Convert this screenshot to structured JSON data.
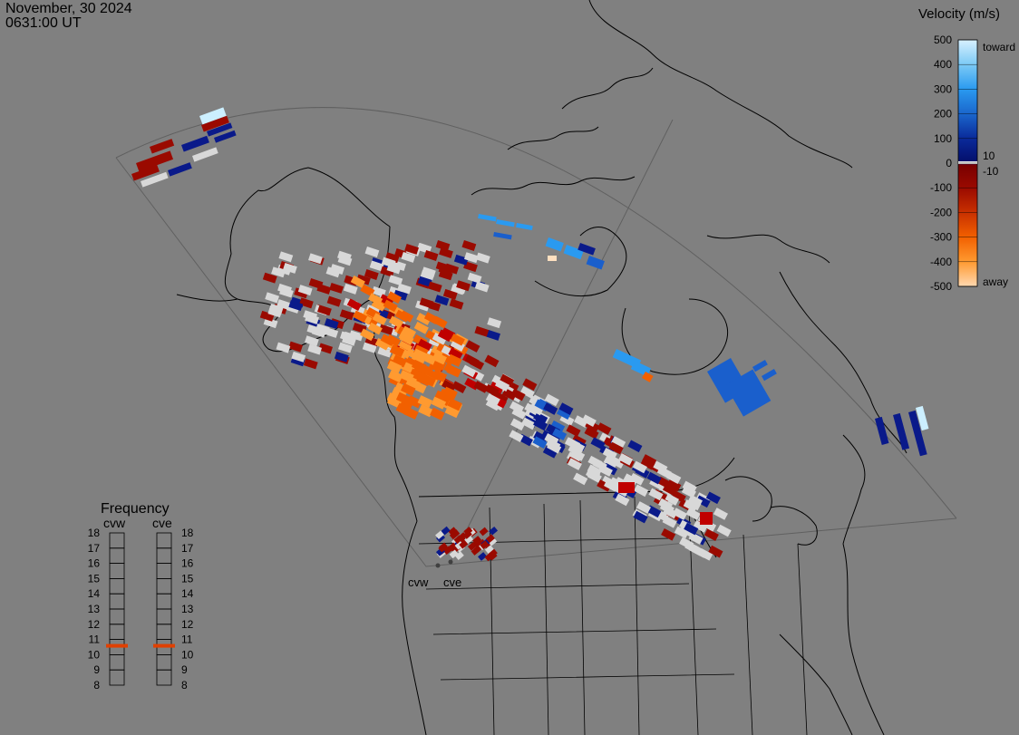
{
  "header": {
    "date": "November, 30 2024",
    "time": "0631:00 UT"
  },
  "colorbar": {
    "title": "Velocity (m/s)",
    "toward_label": "toward",
    "away_label": "away",
    "ticks": [
      "500",
      "400",
      "300",
      "200",
      "100",
      "0",
      "-100",
      "-200",
      "-300",
      "-400",
      "-500"
    ],
    "ticks_positive": [
      500,
      400,
      300,
      200,
      100,
      0,
      -100,
      -200,
      -300,
      -400,
      -500
    ],
    "inner_ticks": [
      "10",
      "-10"
    ],
    "gradient": [
      {
        "value": 500,
        "color": "#d8f0ff"
      },
      {
        "value": 400,
        "color": "#7ccaf5"
      },
      {
        "value": 300,
        "color": "#2a9af0"
      },
      {
        "value": 200,
        "color": "#1a66cc"
      },
      {
        "value": 100,
        "color": "#0a2a9a"
      },
      {
        "value": 10,
        "color": "#04106e"
      },
      {
        "value": -10,
        "color": "#7a0000"
      },
      {
        "value": -100,
        "color": "#9a0a00"
      },
      {
        "value": -200,
        "color": "#c83000"
      },
      {
        "value": -300,
        "color": "#f26000"
      },
      {
        "value": -400,
        "color": "#ff9a30"
      },
      {
        "value": -500,
        "color": "#ffd8b0"
      }
    ]
  },
  "frequency": {
    "title": "Frequency",
    "radars": [
      "cvw",
      "cve"
    ],
    "levels": [
      "18",
      "17",
      "16",
      "15",
      "14",
      "13",
      "12",
      "11",
      "10",
      "9",
      "8"
    ],
    "selected": {
      "cvw": "11",
      "cve": "11"
    },
    "marker_color": "#e04000"
  },
  "sites": {
    "west": "cvw",
    "east": "cve"
  },
  "colors": {
    "background": "#808080",
    "lines": "#000000",
    "ground_scatter": "#d8d8d8",
    "dark_red": "#9a0a00",
    "red": "#c00000",
    "orange": "#f26000",
    "light_orange": "#ff9a30",
    "navy": "#0a1a8a",
    "blue": "#1a5fcc",
    "sky": "#2a9af0",
    "pale": "#ccefff"
  }
}
